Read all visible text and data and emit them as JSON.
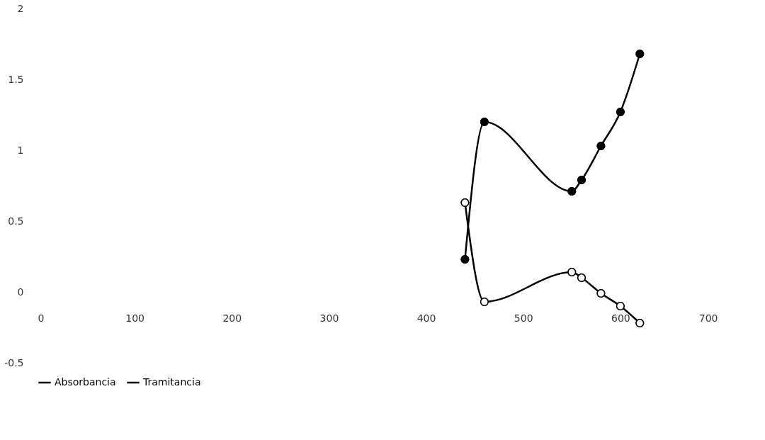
{
  "chart_data": {
    "type": "line",
    "x": [
      440,
      460,
      550,
      560,
      580,
      600,
      620
    ],
    "series": [
      {
        "name": "Absorbancia",
        "color": "#000000",
        "colors": [
          "#ffffff",
          "#ffffff",
          "#ffffff",
          "#ffffff",
          "#ffffff",
          "#ffffff",
          "#ffffff"
        ],
        "values": [
          0.63,
          -0.07,
          0.14,
          0.1,
          -0.01,
          -0.1,
          -0.22
        ]
      },
      {
        "name": "Tramitancia",
        "color": "#000000",
        "colors": [
          "#000000",
          "#000000",
          "#000000",
          "#000000",
          "#000000",
          "#000000",
          "#000000"
        ],
        "values": [
          0.23,
          1.2,
          0.71,
          0.79,
          1.03,
          1.27,
          1.68
        ]
      }
    ],
    "xlim": [
      0,
      700
    ],
    "xticks": [
      0,
      100,
      200,
      300,
      400,
      500,
      600,
      700
    ],
    "ylim": [
      -0.5,
      2
    ],
    "yticks": [
      -0.5,
      0,
      0.5,
      1,
      1.5,
      2
    ],
    "grid": false,
    "legend": "bottom",
    "marker": "circle",
    "line_style": "solid"
  }
}
